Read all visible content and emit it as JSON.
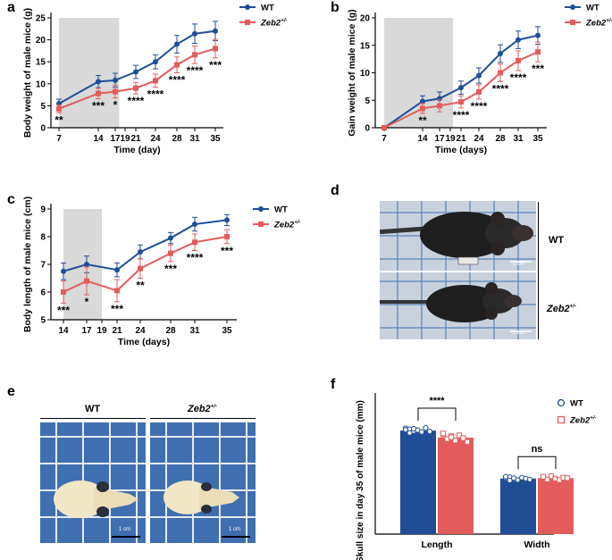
{
  "colors": {
    "wt": "#1f4e96",
    "zeb2": "#e35c5c",
    "shade": "#d9d9d9",
    "photo_bg": "#c9d1dc",
    "grid": "#5b84b8"
  },
  "panels": {
    "a": {
      "letter": "a"
    },
    "b": {
      "letter": "b"
    },
    "c": {
      "letter": "c"
    },
    "d": {
      "letter": "d",
      "scale_label": "1 cm",
      "labels": {
        "wt": "WT",
        "zeb2": "Zeb2",
        "zeb2_sup": "+/-"
      }
    },
    "e": {
      "letter": "e",
      "scale_label": "1 cm",
      "labels": {
        "wt": "WT",
        "zeb2": "Zeb2",
        "zeb2_sup": "+/-"
      }
    },
    "f": {
      "letter": "f"
    }
  },
  "chart_data": [
    {
      "id": "a",
      "type": "line",
      "ylabel": "Body weight of male mice (g)",
      "xlabel": "Time (day)",
      "x": [
        7,
        14,
        17,
        19,
        21,
        24,
        28,
        31,
        35
      ],
      "xticks": [
        "7",
        "14",
        "17",
        "19",
        "21",
        "24",
        "28",
        "31",
        "35"
      ],
      "xlim": [
        7,
        35
      ],
      "ylim": [
        0,
        25
      ],
      "yticks": [
        0,
        5,
        10,
        15,
        20,
        25
      ],
      "shaded_x": [
        7,
        17.8
      ],
      "legend": [
        "WT",
        "Zeb2+/-"
      ],
      "series": [
        {
          "name": "WT",
          "values": [
            5.5,
            10.5,
            10.8,
            null,
            12.7,
            15,
            19,
            21.4,
            22
          ],
          "errors": [
            1,
            1.4,
            1.6,
            null,
            1.5,
            1.6,
            2,
            2.2,
            2.2
          ]
        },
        {
          "name": "Zeb2+/-",
          "values": [
            4.3,
            7.8,
            8.2,
            null,
            9,
            10.7,
            14.3,
            16.6,
            18
          ],
          "errors": [
            0.9,
            1.2,
            1.4,
            null,
            1.3,
            1.5,
            1.8,
            2,
            2.1
          ]
        }
      ],
      "annotations": [
        {
          "x": 7,
          "text": "**"
        },
        {
          "x": 14,
          "text": "***"
        },
        {
          "x": 17,
          "text": "*"
        },
        {
          "x": 21,
          "text": "****"
        },
        {
          "x": 24,
          "text": "****"
        },
        {
          "x": 28,
          "text": "****"
        },
        {
          "x": 31,
          "text": "****"
        },
        {
          "x": 35,
          "text": "***"
        }
      ]
    },
    {
      "id": "b",
      "type": "line",
      "ylabel": "Gain weight of male mice (g)",
      "xlabel": "Time (days)",
      "x": [
        7,
        14,
        17,
        19,
        21,
        24,
        28,
        31,
        35
      ],
      "xticks": [
        "7",
        "14",
        "17",
        "19",
        "21",
        "24",
        "28",
        "31",
        "35"
      ],
      "xlim": [
        7,
        35
      ],
      "ylim": [
        0,
        20
      ],
      "yticks": [
        0,
        5,
        10,
        15,
        20
      ],
      "shaded_x": [
        7,
        19.5
      ],
      "legend": [
        "WT",
        "Zeb2+/-"
      ],
      "series": [
        {
          "name": "WT",
          "values": [
            0,
            4.8,
            5.3,
            null,
            7.3,
            9.5,
            13.5,
            16,
            16.8
          ],
          "errors": [
            0,
            1,
            1.2,
            null,
            1.2,
            1.4,
            1.6,
            1.6,
            1.6
          ]
        },
        {
          "name": "Zeb2+/-",
          "values": [
            0,
            3.5,
            4,
            null,
            4.7,
            6.5,
            10,
            12.2,
            13.8
          ],
          "errors": [
            0,
            0.9,
            1.1,
            null,
            1.1,
            1.3,
            1.6,
            1.8,
            1.8
          ]
        }
      ],
      "annotations": [
        {
          "x": 14,
          "text": "**"
        },
        {
          "x": 21,
          "text": "****"
        },
        {
          "x": 24,
          "text": "****"
        },
        {
          "x": 28,
          "text": "****"
        },
        {
          "x": 31,
          "text": "****"
        },
        {
          "x": 35,
          "text": "***"
        }
      ]
    },
    {
      "id": "c",
      "type": "line",
      "ylabel": "Body length of male mice (cm)",
      "xlabel": "Time (days)",
      "x": [
        14,
        17,
        19,
        21,
        24,
        28,
        31,
        35
      ],
      "xticks": [
        "14",
        "17",
        "19",
        "21",
        "24",
        "28",
        "31",
        "35"
      ],
      "xlim": [
        14,
        35
      ],
      "ylim": [
        5,
        9
      ],
      "yticks": [
        5,
        6,
        7,
        8,
        9
      ],
      "shaded_x": [
        14,
        19
      ],
      "legend": [
        "WT",
        "Zeb2+/-"
      ],
      "series": [
        {
          "name": "WT",
          "values": [
            6.75,
            7,
            null,
            6.8,
            7.45,
            7.95,
            8.45,
            8.6
          ],
          "errors": [
            0.3,
            0.3,
            null,
            0.25,
            0.25,
            0.2,
            0.25,
            0.2
          ]
        },
        {
          "name": "Zeb2+/-",
          "values": [
            6,
            6.4,
            null,
            6.05,
            6.85,
            7.4,
            7.8,
            8
          ],
          "errors": [
            0.4,
            0.5,
            null,
            0.4,
            0.35,
            0.3,
            0.3,
            0.25
          ]
        }
      ],
      "annotations": [
        {
          "x": 14,
          "text": "***"
        },
        {
          "x": 17,
          "text": "*"
        },
        {
          "x": 21,
          "text": "***"
        },
        {
          "x": 24,
          "text": "**"
        },
        {
          "x": 28,
          "text": "***"
        },
        {
          "x": 31,
          "text": "****"
        },
        {
          "x": 35,
          "text": "***"
        }
      ]
    },
    {
      "id": "f",
      "type": "bar",
      "ylabel": "Skull size in day 35 of male mice  (mm)",
      "categories": [
        "Length",
        "Width"
      ],
      "ylim": [
        0,
        30
      ],
      "series": [
        {
          "name": "WT",
          "values": [
            22,
            11.8
          ],
          "points": [
            [
              22.5,
              22.3,
              21.9,
              22.1,
              21.7,
              22.6,
              21.8,
              22.2,
              21.5,
              22.4
            ],
            [
              11.9,
              12.1,
              11.7,
              11.5,
              12,
              11.8,
              11.6,
              12.2,
              11.4,
              11.9
            ]
          ]
        },
        {
          "name": "Zeb2+/-",
          "values": [
            20.5,
            11.9
          ],
          "points": [
            [
              21.2,
              20.1,
              20.8,
              19.9,
              21,
              20.4,
              19.6,
              21.4,
              20.2,
              20.6
            ],
            [
              12.1,
              11.6,
              12.3,
              11.8,
              11.5,
              12,
              11.9,
              12.2
            ]
          ]
        }
      ],
      "legend": [
        "WT",
        "Zeb2+/-"
      ],
      "significance": [
        {
          "category": "Length",
          "text": "****"
        },
        {
          "category": "Width",
          "text": "ns"
        }
      ]
    }
  ]
}
